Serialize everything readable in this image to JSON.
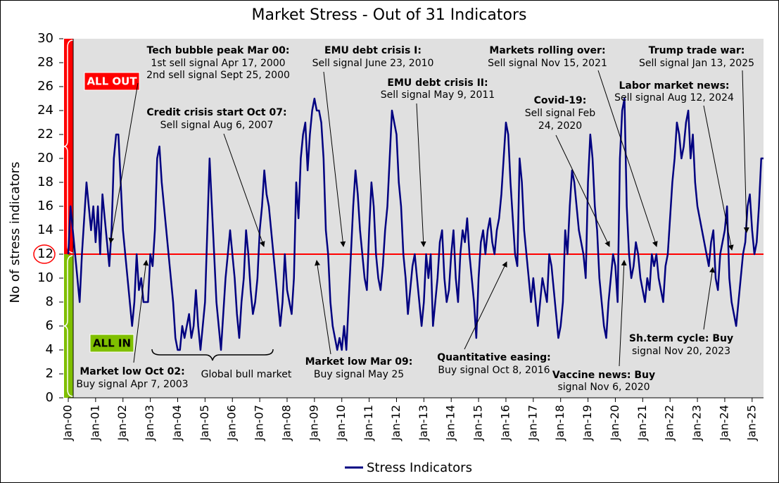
{
  "chart_data": {
    "type": "line",
    "title": "Market Stress - Out of 31 Indicators",
    "ylabel": "No of stress indicators",
    "ylim": [
      0,
      30
    ],
    "yticks": [
      0,
      2,
      4,
      6,
      8,
      10,
      12,
      14,
      16,
      18,
      20,
      22,
      24,
      26,
      28,
      30
    ],
    "xlim": [
      "2000-01",
      "2025-06"
    ],
    "xticks": [
      {
        "value": "2000-01",
        "label": "Jan-00"
      },
      {
        "value": "2001-01",
        "label": "Jan-01"
      },
      {
        "value": "2002-01",
        "label": "Jan-02"
      },
      {
        "value": "2003-01",
        "label": "Jan-03"
      },
      {
        "value": "2004-01",
        "label": "Jan-04"
      },
      {
        "value": "2005-01",
        "label": "Jan-05"
      },
      {
        "value": "2006-01",
        "label": "Jan-06"
      },
      {
        "value": "2007-01",
        "label": "Jan-07"
      },
      {
        "value": "2008-01",
        "label": "Jan-08"
      },
      {
        "value": "2009-01",
        "label": "Jan-09"
      },
      {
        "value": "2010-01",
        "label": "Jan-10"
      },
      {
        "value": "2011-01",
        "label": "Jan-11"
      },
      {
        "value": "2012-01",
        "label": "Jan-12"
      },
      {
        "value": "2013-01",
        "label": "Jan-13"
      },
      {
        "value": "2014-01",
        "label": "Jan-14"
      },
      {
        "value": "2015-01",
        "label": "Jan-15"
      },
      {
        "value": "2016-01",
        "label": "Jan-16"
      },
      {
        "value": "2017-01",
        "label": "Jan-17"
      },
      {
        "value": "2018-01",
        "label": "Jan-18"
      },
      {
        "value": "2019-01",
        "label": "Jan-19"
      },
      {
        "value": "2020-01",
        "label": "Jan-20"
      },
      {
        "value": "2021-01",
        "label": "Jan-21"
      },
      {
        "value": "2022-01",
        "label": "Jan-22"
      },
      {
        "value": "2023-01",
        "label": "Jan-23"
      },
      {
        "value": "2024-01",
        "label": "Jan-24"
      },
      {
        "value": "2025-01",
        "label": "Jan-25"
      }
    ],
    "threshold": 12,
    "threshold_color": "#ff0000",
    "zones": [
      {
        "label": "ALL OUT",
        "color": "#ff0000"
      },
      {
        "label": "ALL IN",
        "color": "#7fbf00"
      }
    ],
    "x": [
      "2000-01",
      "2000-02",
      "2000-03",
      "2000-04",
      "2000-05",
      "2000-06",
      "2000-07",
      "2000-08",
      "2000-09",
      "2000-10",
      "2000-11",
      "2000-12",
      "2001-01",
      "2001-02",
      "2001-03",
      "2001-04",
      "2001-05",
      "2001-06",
      "2001-07",
      "2001-08",
      "2001-09",
      "2001-10",
      "2001-11",
      "2001-12",
      "2002-01",
      "2002-02",
      "2002-03",
      "2002-04",
      "2002-05",
      "2002-06",
      "2002-07",
      "2002-08",
      "2002-09",
      "2002-10",
      "2002-11",
      "2002-12",
      "2003-01",
      "2003-02",
      "2003-03",
      "2003-04",
      "2003-05",
      "2003-06",
      "2003-07",
      "2003-08",
      "2003-09",
      "2003-10",
      "2003-11",
      "2003-12",
      "2004-01",
      "2004-02",
      "2004-03",
      "2004-04",
      "2004-05",
      "2004-06",
      "2004-07",
      "2004-08",
      "2004-09",
      "2004-10",
      "2004-11",
      "2004-12",
      "2005-01",
      "2005-02",
      "2005-03",
      "2005-04",
      "2005-05",
      "2005-06",
      "2005-07",
      "2005-08",
      "2005-09",
      "2005-10",
      "2005-11",
      "2005-12",
      "2006-01",
      "2006-02",
      "2006-03",
      "2006-04",
      "2006-05",
      "2006-06",
      "2006-07",
      "2006-08",
      "2006-09",
      "2006-10",
      "2006-11",
      "2006-12",
      "2007-01",
      "2007-02",
      "2007-03",
      "2007-04",
      "2007-05",
      "2007-06",
      "2007-07",
      "2007-08",
      "2007-09",
      "2007-10",
      "2007-11",
      "2007-12",
      "2008-01",
      "2008-02",
      "2008-03",
      "2008-04",
      "2008-05",
      "2008-06",
      "2008-07",
      "2008-08",
      "2008-09",
      "2008-10",
      "2008-11",
      "2008-12",
      "2009-01",
      "2009-02",
      "2009-03",
      "2009-04",
      "2009-05",
      "2009-06",
      "2009-07",
      "2009-08",
      "2009-09",
      "2009-10",
      "2009-11",
      "2009-12",
      "2010-01",
      "2010-02",
      "2010-03",
      "2010-04",
      "2010-05",
      "2010-06",
      "2010-07",
      "2010-08",
      "2010-09",
      "2010-10",
      "2010-11",
      "2010-12",
      "2011-01",
      "2011-02",
      "2011-03",
      "2011-04",
      "2011-05",
      "2011-06",
      "2011-07",
      "2011-08",
      "2011-09",
      "2011-10",
      "2011-11",
      "2011-12",
      "2012-01",
      "2012-02",
      "2012-03",
      "2012-04",
      "2012-05",
      "2012-06",
      "2012-07",
      "2012-08",
      "2012-09",
      "2012-10",
      "2012-11",
      "2012-12",
      "2013-01",
      "2013-02",
      "2013-03",
      "2013-04",
      "2013-05",
      "2013-06",
      "2013-07",
      "2013-08",
      "2013-09",
      "2013-10",
      "2013-11",
      "2013-12",
      "2014-01",
      "2014-02",
      "2014-03",
      "2014-04",
      "2014-05",
      "2014-06",
      "2014-07",
      "2014-08",
      "2014-09",
      "2014-10",
      "2014-11",
      "2014-12",
      "2015-01",
      "2015-02",
      "2015-03",
      "2015-04",
      "2015-05",
      "2015-06",
      "2015-07",
      "2015-08",
      "2015-09",
      "2015-10",
      "2015-11",
      "2015-12",
      "2016-01",
      "2016-02",
      "2016-03",
      "2016-04",
      "2016-05",
      "2016-06",
      "2016-07",
      "2016-08",
      "2016-09",
      "2016-10",
      "2016-11",
      "2016-12",
      "2017-01",
      "2017-02",
      "2017-03",
      "2017-04",
      "2017-05",
      "2017-06",
      "2017-07",
      "2017-08",
      "2017-09",
      "2017-10",
      "2017-11",
      "2017-12",
      "2018-01",
      "2018-02",
      "2018-03",
      "2018-04",
      "2018-05",
      "2018-06",
      "2018-07",
      "2018-08",
      "2018-09",
      "2018-10",
      "2018-11",
      "2018-12",
      "2019-01",
      "2019-02",
      "2019-03",
      "2019-04",
      "2019-05",
      "2019-06",
      "2019-07",
      "2019-08",
      "2019-09",
      "2019-10",
      "2019-11",
      "2019-12",
      "2020-01",
      "2020-02",
      "2020-03",
      "2020-04",
      "2020-05",
      "2020-06",
      "2020-07",
      "2020-08",
      "2020-09",
      "2020-10",
      "2020-11",
      "2020-12",
      "2021-01",
      "2021-02",
      "2021-03",
      "2021-04",
      "2021-05",
      "2021-06",
      "2021-07",
      "2021-08",
      "2021-09",
      "2021-10",
      "2021-11",
      "2021-12",
      "2022-01",
      "2022-02",
      "2022-03",
      "2022-04",
      "2022-05",
      "2022-06",
      "2022-07",
      "2022-08",
      "2022-09",
      "2022-10",
      "2022-11",
      "2022-12",
      "2023-01",
      "2023-02",
      "2023-03",
      "2023-04",
      "2023-05",
      "2023-06",
      "2023-07",
      "2023-08",
      "2023-09",
      "2023-10",
      "2023-11",
      "2023-12",
      "2024-01",
      "2024-02",
      "2024-03",
      "2024-04",
      "2024-05",
      "2024-06",
      "2024-07",
      "2024-08",
      "2024-09",
      "2024-10",
      "2024-11",
      "2024-12",
      "2025-01",
      "2025-02",
      "2025-03",
      "2025-04",
      "2025-05",
      "2025-06"
    ],
    "series": [
      {
        "name": "Stress Indicators",
        "color": "#000080",
        "values": [
          12,
          16,
          14,
          12,
          10,
          8,
          12,
          15,
          18,
          16,
          14,
          16,
          13,
          16,
          12,
          17,
          15,
          13,
          11,
          14,
          20,
          22,
          22,
          18,
          14,
          12,
          10,
          8,
          6,
          8,
          12,
          9,
          10,
          8,
          8,
          8,
          12,
          11,
          14,
          20,
          21,
          18,
          16,
          14,
          12,
          10,
          8,
          5,
          4,
          4,
          6,
          5,
          6,
          7,
          5,
          6,
          9,
          6,
          4,
          6,
          8,
          14,
          20,
          16,
          12,
          8,
          6,
          4,
          7,
          10,
          12,
          14,
          12,
          10,
          7,
          5,
          8,
          10,
          14,
          12,
          9,
          7,
          8,
          10,
          14,
          16,
          19,
          17,
          16,
          14,
          12,
          10,
          8,
          6,
          8,
          12,
          9,
          8,
          7,
          10,
          18,
          15,
          20,
          22,
          23,
          19,
          22,
          24,
          25,
          24,
          24,
          23,
          20,
          14,
          12,
          8,
          6,
          5,
          4,
          5,
          4,
          6,
          4,
          8,
          12,
          16,
          19,
          17,
          14,
          12,
          10,
          9,
          14,
          18,
          16,
          12,
          10,
          9,
          11,
          14,
          16,
          20,
          24,
          23,
          22,
          18,
          16,
          12,
          10,
          7,
          9,
          11,
          12,
          10,
          8,
          6,
          8,
          12,
          10,
          12,
          6,
          8,
          10,
          13,
          14,
          10,
          8,
          9,
          12,
          14,
          10,
          8,
          12,
          14,
          13,
          15,
          12,
          10,
          8,
          5,
          10,
          13,
          14,
          12,
          14,
          15,
          13,
          12,
          14,
          15,
          17,
          20,
          23,
          22,
          18,
          15,
          12,
          11,
          20,
          18,
          14,
          12,
          10,
          8,
          10,
          8,
          6,
          8,
          10,
          9,
          8,
          12,
          11,
          9,
          7,
          5,
          6,
          8,
          14,
          12,
          16,
          19,
          18,
          16,
          14,
          13,
          12,
          10,
          18,
          22,
          20,
          16,
          14,
          10,
          8,
          6,
          5,
          8,
          10,
          12,
          11,
          8,
          20,
          24,
          25,
          16,
          12,
          10,
          11,
          13,
          12,
          10,
          9,
          8,
          10,
          9,
          12,
          11,
          12,
          10,
          9,
          8,
          11,
          12,
          15,
          18,
          20,
          23,
          22,
          20,
          21,
          23,
          24,
          20,
          22,
          18,
          16,
          15,
          14,
          13,
          12,
          11,
          13,
          14,
          10,
          9,
          12,
          13,
          14,
          16,
          10,
          8,
          7,
          6,
          8,
          10,
          12,
          13,
          16,
          17,
          14,
          12,
          13,
          16,
          20,
          20
        ]
      }
    ],
    "annotations": [
      {
        "lines": [
          "Tech bubble peak Mar 00:",
          "1st sell signal Apr 17, 2000",
          "2nd sell signal Sept 25, 2000"
        ]
      },
      {
        "lines": [
          "Credit crisis start Oct 07:",
          "Sell signal Aug 6, 2007"
        ]
      },
      {
        "lines": [
          "EMU debt crisis I:",
          "Sell signal June 23, 2010"
        ]
      },
      {
        "lines": [
          "EMU debt crisis II:",
          "Sell signal May 9, 2011"
        ]
      },
      {
        "lines": [
          "Markets rolling over:",
          "Sell signal Nov 15, 2021"
        ]
      },
      {
        "lines": [
          "Trump trade war:",
          "Sell signal Jan 13, 2025"
        ]
      },
      {
        "lines": [
          "Labor market news:",
          "Sell signal Aug 12, 2024"
        ]
      },
      {
        "lines": [
          "Covid-19:",
          "Sell signal Feb",
          "24, 2020"
        ]
      },
      {
        "lines": [
          "Market low Oct 02:",
          "Buy signal Apr 7, 2003"
        ]
      },
      {
        "lines": [
          "Global bull market"
        ]
      },
      {
        "lines": [
          "Market low Mar 09:",
          "Buy signal May 25"
        ]
      },
      {
        "lines": [
          "Quantitative easing:",
          "Buy signal Oct 8, 2016"
        ]
      },
      {
        "lines": [
          "Vaccine news: Buy",
          "signal Nov 6, 2020"
        ]
      },
      {
        "lines": [
          "Sh.term cycle: Buy",
          "signal Nov 20, 2023"
        ]
      }
    ]
  }
}
